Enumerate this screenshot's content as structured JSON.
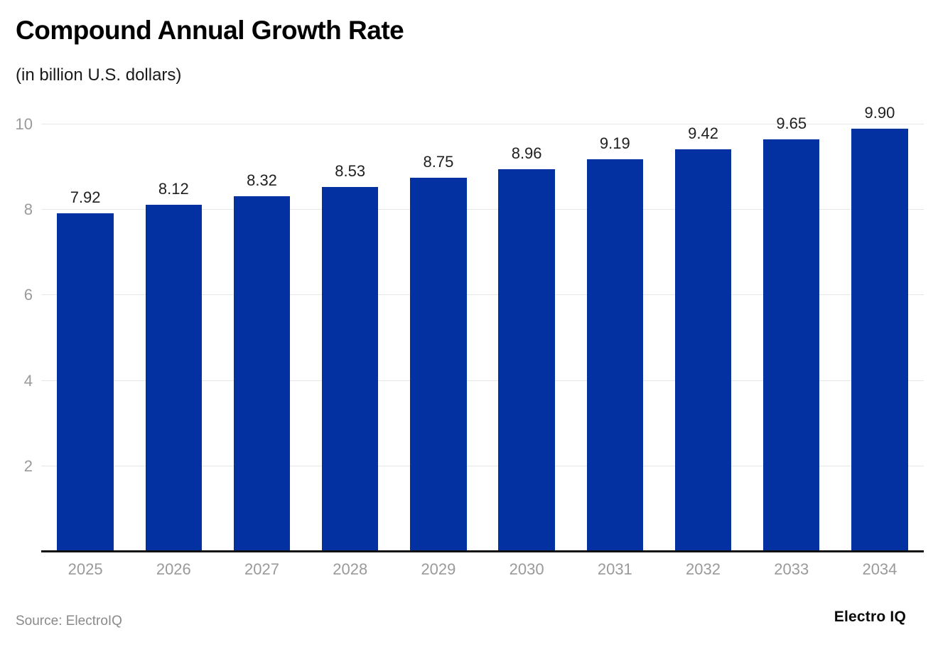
{
  "header": {
    "title": "Compound Annual Growth Rate",
    "subtitle": "(in billion U.S. dollars)"
  },
  "chart_data": {
    "type": "bar",
    "title": "Compound Annual Growth Rate",
    "subtitle": "(in billion U.S. dollars)",
    "categories": [
      "2025",
      "2026",
      "2027",
      "2028",
      "2029",
      "2030",
      "2031",
      "2032",
      "2033",
      "2034"
    ],
    "values": [
      7.92,
      8.12,
      8.32,
      8.53,
      8.75,
      8.96,
      9.19,
      9.42,
      9.65,
      9.9
    ],
    "xlabel": "",
    "ylabel": "",
    "ylim": [
      0,
      10
    ],
    "yticks": [
      2,
      4,
      6,
      8,
      10
    ],
    "grid": true,
    "legend": "none",
    "bar_color": "#0431a2",
    "value_label_color": "#1f1f1f",
    "gridline_color": "#e6e6e6",
    "tick_label_color": "#9a9a9a",
    "axis_line_color": "#111111"
  },
  "footer": {
    "source": "Source: ElectroIQ",
    "logo": "Electro IQ"
  }
}
